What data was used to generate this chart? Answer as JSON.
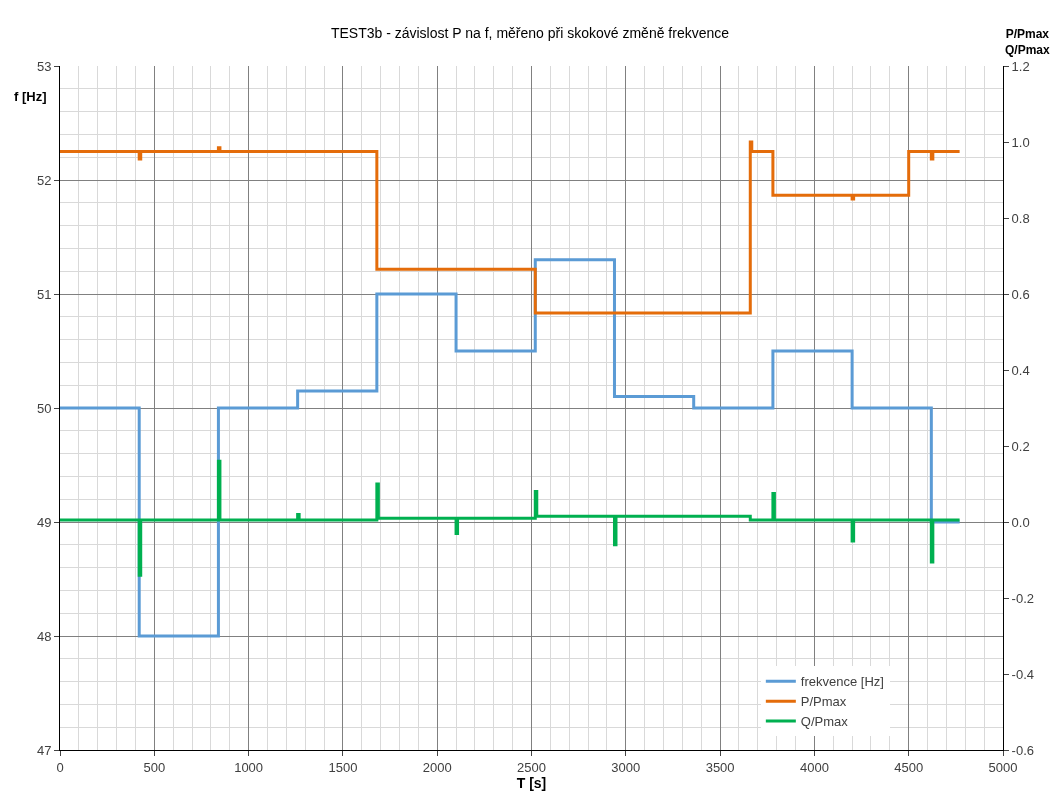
{
  "chart_data": {
    "type": "step",
    "title": "TEST3b - závislost P na f, měřeno při skokové změně frekvence",
    "xlabel": "T [s]",
    "ylabel": "f [Hz]",
    "y2label": "P/Pmax\nQ/Pmax",
    "series": [
      {
        "name": "frekvence [Hz]",
        "color": "#5b9bd5",
        "x": [
          0,
          420,
          840,
          1260,
          1680,
          2100,
          2520,
          2940,
          3360,
          3780,
          4200,
          4620,
          4770
        ],
        "values": [
          50,
          48,
          50,
          50.15,
          51,
          50.5,
          51.3,
          50.1,
          50,
          50.5,
          50,
          49,
          49
        ]
      },
      {
        "name": "P/Pmax",
        "color": "#e46c0a",
        "axis": "y2",
        "x": [
          0,
          420,
          428,
          840,
          848,
          1680,
          2520,
          3660,
          3668,
          3780,
          4200,
          4208,
          4500,
          4620,
          4628,
          4770
        ],
        "values": [
          0.975,
          0.955,
          0.975,
          0.985,
          0.975,
          0.665,
          0.55,
          1.0,
          0.975,
          0.86,
          0.85,
          0.86,
          0.975,
          0.955,
          0.975,
          0.975
        ]
      },
      {
        "name": "Q/Pmax",
        "color": "#00b050",
        "axis": "y2",
        "x": [
          0,
          420,
          428,
          840,
          848,
          1260,
          1268,
          1680,
          1688,
          2100,
          2108,
          2520,
          2528,
          2940,
          2948,
          3660,
          3780,
          3788,
          4200,
          4208,
          4620,
          4628,
          4770
        ],
        "values": [
          0.005,
          -0.14,
          0.005,
          0.16,
          0.005,
          0.02,
          0.005,
          0.1,
          0.01,
          -0.03,
          0.01,
          0.08,
          0.015,
          -0.06,
          0.015,
          0.005,
          0.075,
          0.005,
          -0.05,
          0.005,
          -0.105,
          0.005,
          0.005
        ]
      }
    ],
    "xlim": [
      0,
      5000
    ],
    "xticks": [
      0,
      500,
      1000,
      1500,
      2000,
      2500,
      3000,
      3500,
      4000,
      4500,
      5000
    ],
    "ylim": [
      47,
      53
    ],
    "yticks": [
      47,
      48,
      49,
      50,
      51,
      52,
      53
    ],
    "y2lim": [
      -0.6,
      1.2
    ],
    "y2ticks": [
      {
        "value": -0.6,
        "label": "-0.6"
      },
      {
        "value": -0.4,
        "label": "-0.4"
      },
      {
        "value": -0.2,
        "label": "-0.2"
      },
      {
        "value": 0,
        "label": "0.0"
      },
      {
        "value": 0.2,
        "label": "0.2"
      },
      {
        "value": 0.4,
        "label": "0.4"
      },
      {
        "value": 0.6,
        "label": "0.6"
      },
      {
        "value": 0.8,
        "label": "0.8"
      },
      {
        "value": 1.0,
        "label": "1.0"
      },
      {
        "value": 1.2,
        "label": "1.2"
      }
    ],
    "grid": true,
    "legend": "bottom right",
    "marker": "none",
    "line_style": "solid"
  }
}
